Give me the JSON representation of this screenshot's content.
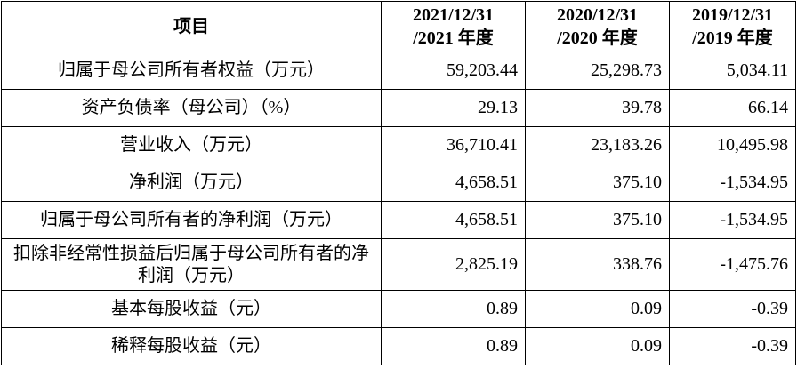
{
  "table": {
    "header": [
      [
        "项目"
      ],
      [
        "2021/12/31",
        "/2021 年度"
      ],
      [
        "2020/12/31",
        "/2020 年度"
      ],
      [
        "2019/12/31",
        "/2019 年度"
      ]
    ],
    "rows": [
      [
        "归属于母公司所有者权益（万元）",
        "59,203.44",
        "25,298.73",
        "5,034.11"
      ],
      [
        "资产负债率（母公司）（%）",
        "29.13",
        "39.78",
        "66.14"
      ],
      [
        "营业收入（万元）",
        "36,710.41",
        "23,183.26",
        "10,495.98"
      ],
      [
        "净利润（万元）",
        "4,658.51",
        "375.10",
        "-1,534.95"
      ],
      [
        "归属于母公司所有者的净利润（万元）",
        "4,658.51",
        "375.10",
        "-1,534.95"
      ],
      [
        "扣除非经常性损益后归属于母公司所有者的净利润（万元）",
        "2,825.19",
        "338.76",
        "-1,475.76"
      ],
      [
        "基本每股收益（元）",
        "0.89",
        "0.09",
        "-0.39"
      ],
      [
        "稀释每股收益（元）",
        "0.89",
        "0.09",
        "-0.39"
      ]
    ]
  }
}
